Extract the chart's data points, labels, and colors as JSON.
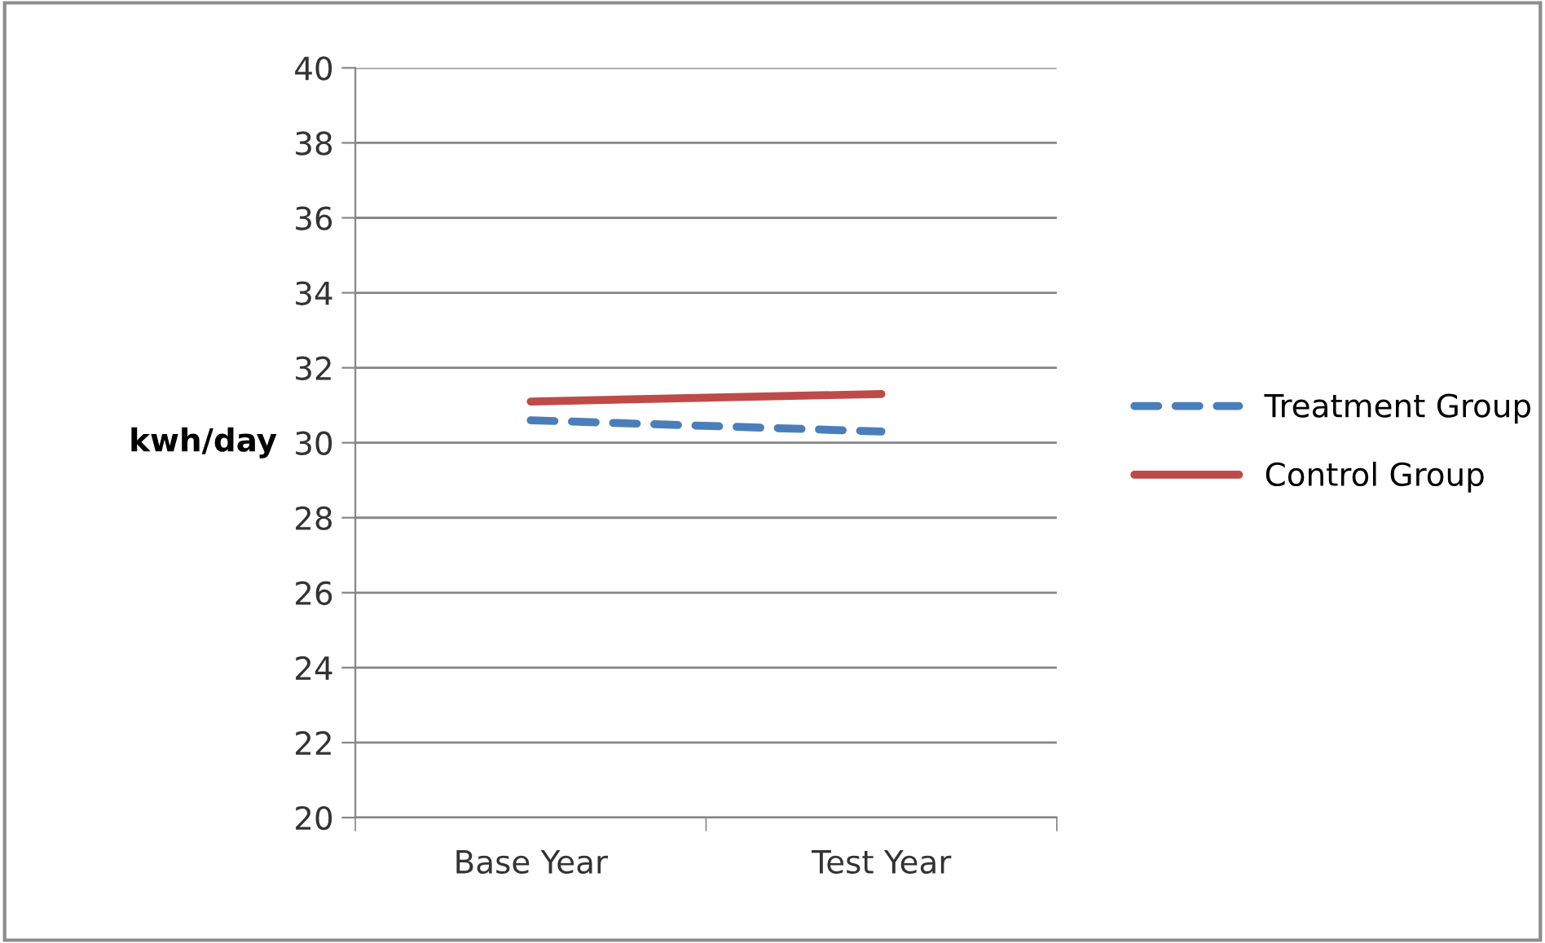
{
  "chart_data": {
    "type": "line",
    "ylabel": "kwh/day",
    "categories": [
      "Base Year",
      "Test Year"
    ],
    "series": [
      {
        "name": "Treatment Group",
        "color": "#4a7ebb",
        "values": [
          30.6,
          30.3
        ],
        "line_style": "dashed"
      },
      {
        "name": "Control Group",
        "color": "#be4b48",
        "values": [
          31.1,
          31.3
        ],
        "line_style": "solid"
      }
    ],
    "ylim": [
      20,
      40
    ],
    "yticks": [
      20,
      22,
      24,
      26,
      28,
      30,
      32,
      34,
      36,
      38,
      40
    ],
    "grid": "y",
    "legend": "right",
    "marker": "none"
  }
}
